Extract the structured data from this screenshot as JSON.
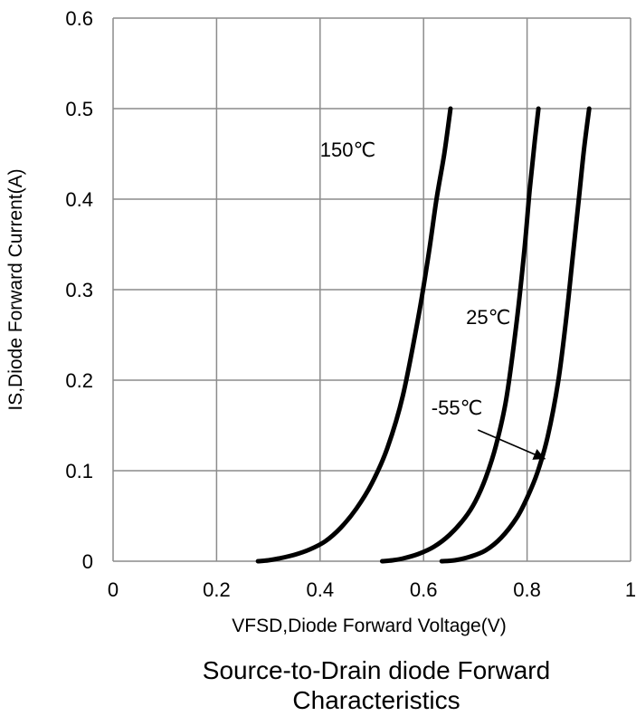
{
  "chart_data": {
    "type": "line",
    "title_lines": [
      "Source-to-Drain diode Forward",
      "Characteristics"
    ],
    "xlabel": "VFSD,Diode Forward Voltage(V)",
    "ylabel": "IS,Diode Forward Current(A)",
    "xlim": [
      0,
      1
    ],
    "ylim": [
      0,
      0.6
    ],
    "x_ticks": [
      {
        "value": 0,
        "label": "0"
      },
      {
        "value": 0.2,
        "label": "0.2"
      },
      {
        "value": 0.4,
        "label": "0.4"
      },
      {
        "value": 0.6,
        "label": "0.6"
      },
      {
        "value": 0.8,
        "label": "0.8"
      },
      {
        "value": 1,
        "label": "1"
      }
    ],
    "y_ticks": [
      {
        "value": 0,
        "label": "0"
      },
      {
        "value": 0.1,
        "label": "0.1"
      },
      {
        "value": 0.2,
        "label": "0.2"
      },
      {
        "value": 0.3,
        "label": "0.3"
      },
      {
        "value": 0.4,
        "label": "0.4"
      },
      {
        "value": 0.5,
        "label": "0.5"
      },
      {
        "value": 0.6,
        "label": "0.6"
      }
    ],
    "grid": true,
    "legend": "none",
    "series_color": "#000000",
    "grid_color": "#8c8c8c",
    "series": [
      {
        "key": "150c",
        "points": [
          [
            0.28,
            0
          ],
          [
            0.3,
            0.001
          ],
          [
            0.32,
            0.003
          ],
          [
            0.35,
            0.007
          ],
          [
            0.38,
            0.013
          ],
          [
            0.41,
            0.022
          ],
          [
            0.44,
            0.037
          ],
          [
            0.47,
            0.058
          ],
          [
            0.5,
            0.086
          ],
          [
            0.53,
            0.125
          ],
          [
            0.56,
            0.183
          ],
          [
            0.59,
            0.27
          ],
          [
            0.61,
            0.34
          ],
          [
            0.625,
            0.4
          ],
          [
            0.64,
            0.45
          ],
          [
            0.652,
            0.5
          ]
        ],
        "label": {
          "text": "150℃",
          "x": 0.4,
          "y": 0.447
        }
      },
      {
        "key": "25c",
        "points": [
          [
            0.52,
            0
          ],
          [
            0.54,
            0.001
          ],
          [
            0.56,
            0.003
          ],
          [
            0.59,
            0.008
          ],
          [
            0.62,
            0.016
          ],
          [
            0.65,
            0.029
          ],
          [
            0.68,
            0.048
          ],
          [
            0.7,
            0.066
          ],
          [
            0.72,
            0.092
          ],
          [
            0.74,
            0.128
          ],
          [
            0.76,
            0.18
          ],
          [
            0.78,
            0.265
          ],
          [
            0.795,
            0.345
          ],
          [
            0.805,
            0.41
          ],
          [
            0.815,
            0.465
          ],
          [
            0.822,
            0.5
          ]
        ],
        "label": {
          "text": "25℃",
          "x": 0.682,
          "y": 0.262
        }
      },
      {
        "key": "minus55c",
        "points": [
          [
            0.635,
            0
          ],
          [
            0.66,
            0.001
          ],
          [
            0.69,
            0.005
          ],
          [
            0.72,
            0.012
          ],
          [
            0.75,
            0.026
          ],
          [
            0.78,
            0.048
          ],
          [
            0.8,
            0.07
          ],
          [
            0.82,
            0.098
          ],
          [
            0.84,
            0.138
          ],
          [
            0.86,
            0.198
          ],
          [
            0.875,
            0.265
          ],
          [
            0.888,
            0.335
          ],
          [
            0.9,
            0.4
          ],
          [
            0.91,
            0.455
          ],
          [
            0.92,
            0.5
          ]
        ],
        "label": {
          "text": "-55℃",
          "x": 0.615,
          "y": 0.162
        }
      }
    ],
    "annotations": [
      {
        "type": "arrow",
        "from": [
          0.705,
          0.145
        ],
        "to": [
          0.835,
          0.113
        ]
      }
    ]
  }
}
